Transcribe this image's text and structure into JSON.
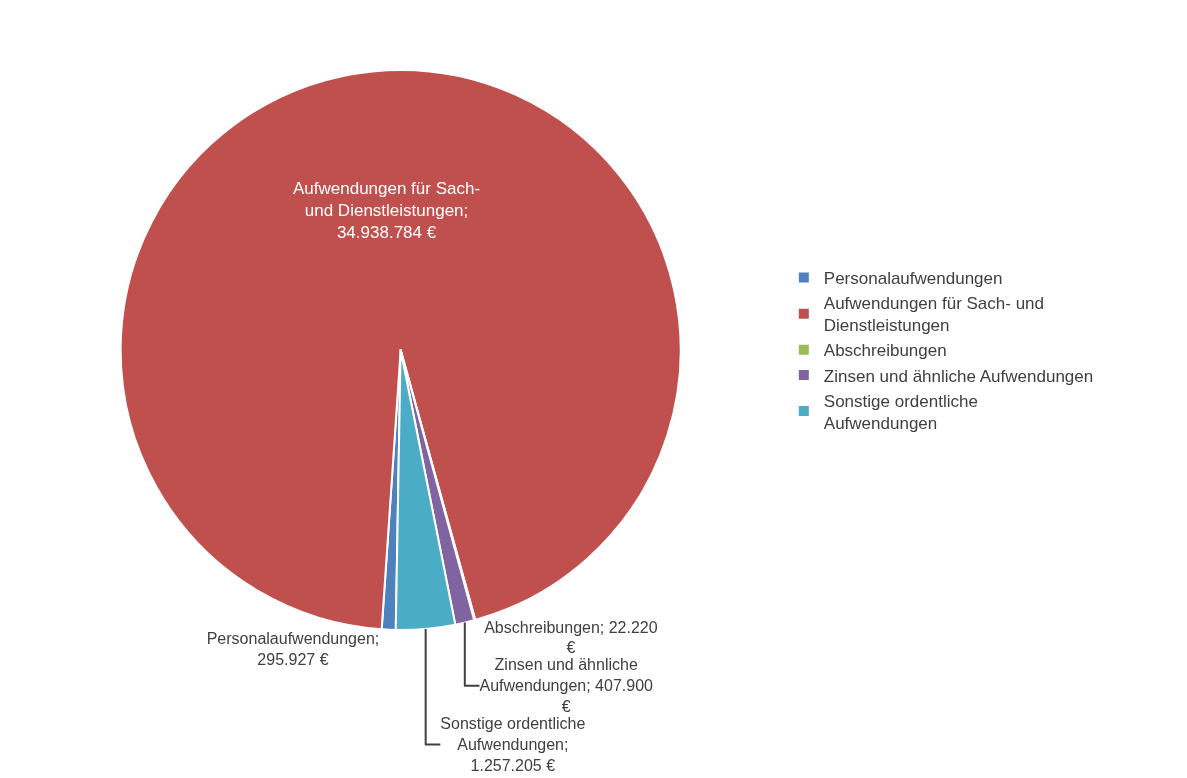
{
  "chart_data": {
    "type": "pie",
    "categories": [
      "Personalaufwendungen",
      "Aufwendungen für Sach- und Dienstleistungen",
      "Abschreibungen",
      "Zinsen und ähnliche Aufwendungen",
      "Sonstige ordentliche Aufwendungen"
    ],
    "values": [
      295927,
      34938784,
      22220,
      407900,
      1257205
    ],
    "value_labels": [
      "Personalaufwendungen; 295.927 €",
      "Aufwendungen für Sach- und Dienstleistungen; 34.938.784 €",
      "Abschreibungen; 22.220 €",
      "Zinsen und ähnliche Aufwendungen; 407.900 €",
      "Sonstige ordentliche Aufwendungen; 1.257.205 €"
    ],
    "colors": [
      "#4f81bd",
      "#c0504d",
      "#9bbb59",
      "#8064a2",
      "#4bacc6"
    ],
    "legend": "right"
  }
}
